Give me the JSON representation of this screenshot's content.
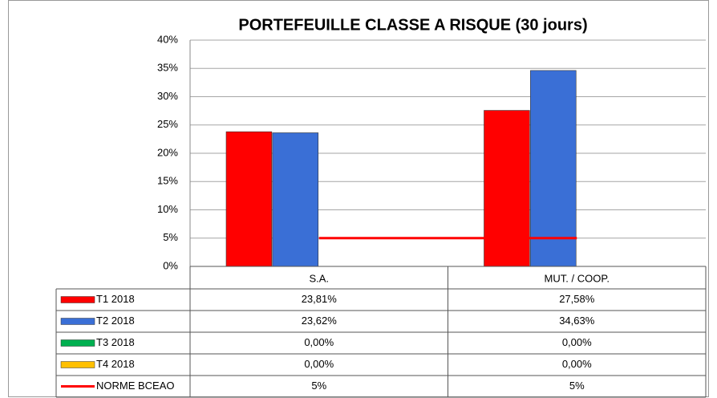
{
  "chart_data": {
    "type": "bar",
    "title": "PORTEFEUILLE CLASSE A RISQUE (30 jours)",
    "categories": [
      "S.A.",
      "MUT. / COOP."
    ],
    "series": [
      {
        "name": "T1 2018",
        "color": "#ff0000",
        "values": [
          23.81,
          27.58
        ],
        "value_labels": [
          "23,81%",
          "27,58%"
        ]
      },
      {
        "name": "T2 2018",
        "color": "#3a6fd6",
        "values": [
          23.62,
          34.63
        ],
        "value_labels": [
          "23,62%",
          "34,63%"
        ]
      },
      {
        "name": "T3 2018",
        "color": "#00b050",
        "values": [
          0,
          0
        ],
        "value_labels": [
          "0,00%",
          "0,00%"
        ]
      },
      {
        "name": "T4 2018",
        "color": "#ffc000",
        "values": [
          0,
          0
        ],
        "value_labels": [
          "0,00%",
          "0,00%"
        ]
      },
      {
        "name": "NORME BCEAO",
        "type": "line",
        "color": "#ff0000",
        "values": [
          5,
          5
        ],
        "value_labels": [
          "5%",
          "5%"
        ]
      }
    ],
    "ylim": [
      0,
      40
    ],
    "yticks": [
      {
        "value": 0,
        "label": "0%"
      },
      {
        "value": 5,
        "label": "5%"
      },
      {
        "value": 10,
        "label": "10%"
      },
      {
        "value": 15,
        "label": "15%"
      },
      {
        "value": 20,
        "label": "20%"
      },
      {
        "value": 25,
        "label": "25%"
      },
      {
        "value": 30,
        "label": "30%"
      },
      {
        "value": 35,
        "label": "35%"
      },
      {
        "value": 40,
        "label": "40%"
      }
    ],
    "grid": true
  }
}
